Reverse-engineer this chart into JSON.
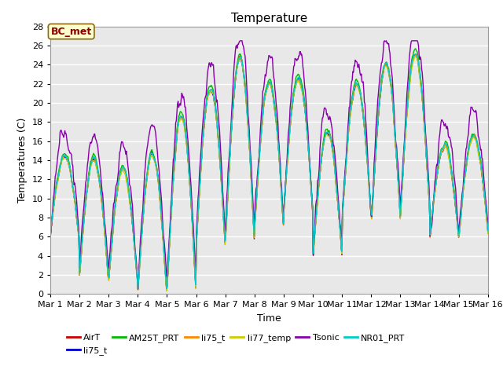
{
  "title": "Temperature",
  "xlabel": "Time",
  "ylabel": "Temperatures (C)",
  "ylim": [
    0,
    28
  ],
  "xlim": [
    0,
    15
  ],
  "xtick_labels": [
    "Mar 1",
    "Mar 2",
    "Mar 3",
    "Mar 4",
    "Mar 5",
    "Mar 6",
    "Mar 7",
    "Mar 8",
    "Mar 9",
    "Mar 10",
    "Mar 11",
    "Mar 12",
    "Mar 13",
    "Mar 14",
    "Mar 15",
    "Mar 16"
  ],
  "xtick_positions": [
    0,
    1,
    2,
    3,
    4,
    5,
    6,
    7,
    8,
    9,
    10,
    11,
    12,
    13,
    14,
    15
  ],
  "ytick_positions": [
    0,
    2,
    4,
    6,
    8,
    10,
    12,
    14,
    16,
    18,
    20,
    22,
    24,
    26,
    28
  ],
  "colors": {
    "AirT": "#cc0000",
    "li75_t_b": "#0000cc",
    "AM25T_PRT": "#00bb00",
    "li75_t": "#ff8800",
    "li77_temp": "#cccc00",
    "Tsonic": "#8800aa",
    "NR01_PRT": "#00cccc"
  },
  "lw": 1.0,
  "legend_entries": [
    {
      "label": "AirT",
      "color": "#cc0000"
    },
    {
      "label": "li75_t",
      "color": "#0000cc"
    },
    {
      "label": "AM25T_PRT",
      "color": "#00bb00"
    },
    {
      "label": "li75_t",
      "color": "#ff8800"
    },
    {
      "label": "li77_temp",
      "color": "#cccc00"
    },
    {
      "label": "Tsonic",
      "color": "#8800aa"
    },
    {
      "label": "NR01_PRT",
      "color": "#00cccc"
    }
  ],
  "annotation_text": "BC_met",
  "bg_color": "#ffffff",
  "plot_bg_color": "#e8e8e8",
  "grid_color": "#ffffff",
  "title_fontsize": 11,
  "axis_fontsize": 9,
  "tick_fontsize": 8
}
